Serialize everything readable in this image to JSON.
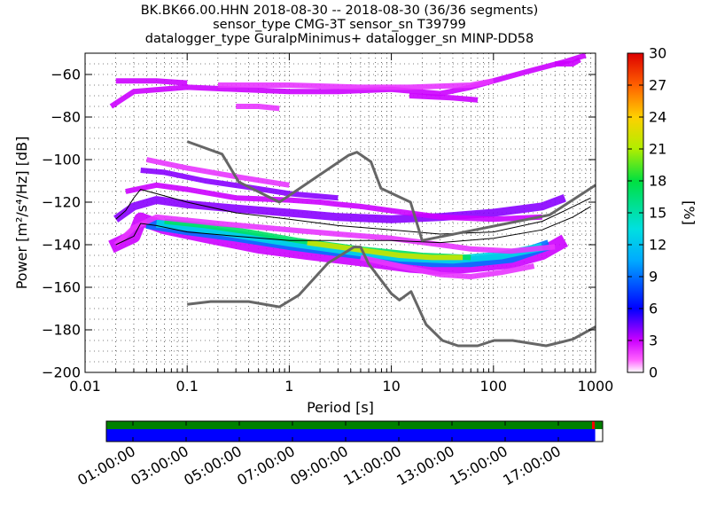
{
  "title_lines": [
    "BK.BK66.00.HHN   2018-08-30 -- 2018-08-30  (36/36 segments)",
    "sensor_type CMG-3T sensor_sn T39799",
    "datalogger_type GuralpMinimus+ datalogger_sn MINP-DD58"
  ],
  "chart_data": {
    "type": "heatmap",
    "xlabel": "Period [s]",
    "ylabel": "Power [m²/s⁴/Hz] [dB]",
    "xscale": "log",
    "xlim": [
      0.01,
      1000
    ],
    "ylim": [
      -200,
      -50
    ],
    "x_ticks": [
      {
        "value": 0.01,
        "label": "0.01"
      },
      {
        "value": 0.1,
        "label": "0.1"
      },
      {
        "value": 1,
        "label": "1"
      },
      {
        "value": 10,
        "label": "10"
      },
      {
        "value": 100,
        "label": "100"
      },
      {
        "value": 1000,
        "label": "1000"
      }
    ],
    "y_ticks": [
      -60,
      -80,
      -100,
      -120,
      -140,
      -160,
      -180,
      -200
    ],
    "colorbar": {
      "label": "[%]",
      "range": [
        0,
        30
      ],
      "ticks": [
        0,
        3,
        6,
        9,
        12,
        15,
        18,
        21,
        24,
        27,
        30
      ]
    },
    "noise_models": {
      "high": [
        [
          0.1,
          -91.5
        ],
        [
          0.22,
          -97.4
        ],
        [
          0.32,
          -110.5
        ],
        [
          0.8,
          -120
        ],
        [
          3.8,
          -98
        ],
        [
          4.6,
          -96.5
        ],
        [
          6.3,
          -101
        ],
        [
          7.9,
          -113.5
        ],
        [
          15.4,
          -120
        ],
        [
          20,
          -138
        ],
        [
          354.8,
          -126
        ],
        [
          1000,
          -112
        ]
      ],
      "low": [
        [
          0.1,
          -168
        ],
        [
          0.17,
          -166.7
        ],
        [
          0.4,
          -166.7
        ],
        [
          0.8,
          -169.2
        ],
        [
          1.24,
          -163.7
        ],
        [
          2.4,
          -148.6
        ],
        [
          4.3,
          -141.1
        ],
        [
          5.0,
          -141.1
        ],
        [
          6.0,
          -149
        ],
        [
          10,
          -163
        ],
        [
          12,
          -166
        ],
        [
          15.6,
          -162
        ],
        [
          21.9,
          -177.5
        ],
        [
          31.6,
          -185
        ],
        [
          45,
          -187.5
        ],
        [
          70,
          -187.5
        ],
        [
          101,
          -185
        ],
        [
          154,
          -185
        ],
        [
          328,
          -187.5
        ],
        [
          600,
          -184.4
        ],
        [
          1000,
          -178.6
        ]
      ]
    },
    "mean_curves": {
      "upper": [
        [
          0.02,
          -128
        ],
        [
          0.025,
          -124
        ],
        [
          0.03,
          -118
        ],
        [
          0.035,
          -114
        ],
        [
          0.05,
          -116
        ],
        [
          0.1,
          -120
        ],
        [
          0.3,
          -125
        ],
        [
          1,
          -128
        ],
        [
          3,
          -131
        ],
        [
          10,
          -133
        ],
        [
          30,
          -135
        ],
        [
          100,
          -134
        ],
        [
          300,
          -129
        ],
        [
          500,
          -124
        ],
        [
          900,
          -118
        ]
      ],
      "lower": [
        [
          0.02,
          -140
        ],
        [
          0.03,
          -136
        ],
        [
          0.035,
          -130
        ],
        [
          0.05,
          -131
        ],
        [
          0.1,
          -134
        ],
        [
          0.3,
          -136
        ],
        [
          1,
          -138
        ],
        [
          3,
          -138
        ],
        [
          10,
          -138
        ],
        [
          30,
          -139
        ],
        [
          100,
          -137
        ],
        [
          300,
          -133
        ],
        [
          600,
          -127
        ],
        [
          900,
          -122
        ]
      ]
    },
    "density_bands": [
      {
        "pts": [
          [
            0.018,
            -141
          ],
          [
            0.03,
            -136
          ],
          [
            0.035,
            -128
          ],
          [
            0.06,
            -132
          ],
          [
            0.15,
            -136
          ],
          [
            0.5,
            -141
          ],
          [
            1.5,
            -144
          ],
          [
            5,
            -147
          ],
          [
            15,
            -150
          ],
          [
            30,
            -151
          ],
          [
            60,
            -150
          ],
          [
            150,
            -148
          ],
          [
            300,
            -144
          ],
          [
            500,
            -138
          ]
        ],
        "w": 5,
        "v": 3
      },
      {
        "pts": [
          [
            0.04,
            -130
          ],
          [
            0.1,
            -133
          ],
          [
            0.3,
            -136
          ],
          [
            1,
            -140
          ],
          [
            3,
            -143
          ],
          [
            10,
            -146
          ],
          [
            25,
            -148
          ],
          [
            60,
            -148
          ],
          [
            150,
            -146
          ],
          [
            350,
            -140
          ]
        ],
        "w": 4,
        "v": 9
      },
      {
        "pts": [
          [
            0.05,
            -130
          ],
          [
            0.12,
            -132
          ],
          [
            0.3,
            -135
          ],
          [
            1,
            -139
          ],
          [
            4,
            -143
          ],
          [
            12,
            -146
          ],
          [
            40,
            -147
          ],
          [
            120,
            -145
          ],
          [
            300,
            -141
          ]
        ],
        "w": 3,
        "v": 13
      },
      {
        "pts": [
          [
            0.06,
            -129
          ],
          [
            0.15,
            -131
          ],
          [
            0.4,
            -134
          ],
          [
            1.2,
            -138
          ],
          [
            5,
            -142
          ],
          [
            20,
            -145
          ],
          [
            60,
            -146
          ]
        ],
        "w": 2,
        "v": 17
      },
      {
        "pts": [
          [
            1.5,
            -139
          ],
          [
            3,
            -141
          ],
          [
            6,
            -143
          ],
          [
            12,
            -145
          ],
          [
            25,
            -146
          ],
          [
            50,
            -146
          ]
        ],
        "w": 2,
        "v": 22
      },
      {
        "pts": [
          [
            0.02,
            -128
          ],
          [
            0.03,
            -122
          ],
          [
            0.05,
            -119
          ],
          [
            0.1,
            -121
          ],
          [
            0.3,
            -123
          ],
          [
            1,
            -125
          ],
          [
            3,
            -127
          ],
          [
            10,
            -128
          ],
          [
            30,
            -127
          ],
          [
            100,
            -125
          ],
          [
            300,
            -122
          ],
          [
            500,
            -118
          ]
        ],
        "w": 3,
        "v": 4
      },
      {
        "pts": [
          [
            0.025,
            -115
          ],
          [
            0.05,
            -112
          ],
          [
            0.1,
            -114
          ],
          [
            0.3,
            -118
          ],
          [
            1,
            -119
          ],
          [
            2,
            -120
          ],
          [
            3,
            -121
          ],
          [
            5,
            -122
          ],
          [
            10,
            -124
          ],
          [
            30,
            -127
          ],
          [
            100,
            -128
          ],
          [
            300,
            -127
          ]
        ],
        "w": 2,
        "v": 3
      },
      {
        "pts": [
          [
            0.035,
            -105
          ],
          [
            0.06,
            -106
          ],
          [
            0.15,
            -110
          ],
          [
            0.4,
            -113
          ],
          [
            1,
            -116
          ],
          [
            3,
            -118
          ]
        ],
        "w": 2,
        "v": 4
      },
      {
        "pts": [
          [
            0.04,
            -100
          ],
          [
            0.1,
            -104
          ],
          [
            0.3,
            -108
          ],
          [
            1,
            -112
          ]
        ],
        "w": 2,
        "v": 2
      },
      {
        "pts": [
          [
            0.02,
            -140
          ],
          [
            0.03,
            -132
          ],
          [
            0.05,
            -127
          ],
          [
            0.2,
            -130
          ],
          [
            1,
            -133
          ],
          [
            3,
            -135
          ],
          [
            10,
            -137
          ],
          [
            30,
            -140
          ],
          [
            60,
            -142
          ],
          [
            150,
            -143
          ],
          [
            400,
            -141
          ]
        ],
        "w": 2,
        "v": 2
      },
      {
        "pts": [
          [
            5,
            -146
          ],
          [
            15,
            -151
          ],
          [
            30,
            -154
          ],
          [
            60,
            -155
          ],
          [
            120,
            -153
          ],
          [
            250,
            -150
          ]
        ],
        "w": 2,
        "v": 2
      },
      {
        "pts": [
          [
            0.018,
            -75
          ],
          [
            0.03,
            -68
          ],
          [
            0.1,
            -66
          ],
          [
            0.3,
            -67
          ],
          [
            1,
            -68
          ],
          [
            3,
            -68
          ],
          [
            10,
            -67
          ],
          [
            30,
            -69
          ],
          [
            60,
            -66
          ],
          [
            100,
            -63
          ],
          [
            200,
            -59
          ],
          [
            500,
            -54
          ],
          [
            800,
            -51
          ]
        ],
        "w": 2,
        "v": 3
      },
      {
        "pts": [
          [
            0.02,
            -63
          ],
          [
            0.05,
            -63
          ],
          [
            0.1,
            -64
          ]
        ],
        "w": 2,
        "v": 3
      },
      {
        "pts": [
          [
            0.2,
            -65
          ],
          [
            1,
            -65
          ],
          [
            5,
            -66
          ],
          [
            15,
            -66
          ],
          [
            60,
            -65
          ],
          [
            100,
            -63
          ]
        ],
        "w": 2,
        "v": 2
      },
      {
        "pts": [
          [
            15,
            -70
          ],
          [
            40,
            -71
          ],
          [
            70,
            -72
          ]
        ],
        "w": 2,
        "v": 3
      },
      {
        "pts": [
          [
            400,
            -55
          ],
          [
            600,
            -55
          ],
          [
            700,
            -53
          ]
        ],
        "w": 2,
        "v": 3
      },
      {
        "pts": [
          [
            0.3,
            -75
          ],
          [
            0.5,
            -75
          ],
          [
            0.8,
            -76
          ]
        ],
        "w": 2,
        "v": 2
      }
    ],
    "timeline": {
      "labels": [
        "01:00:00",
        "03:00:00",
        "05:00:00",
        "07:00:00",
        "09:00:00",
        "11:00:00",
        "13:00:00",
        "15:00:00",
        "17:00:00"
      ],
      "data_fraction": 0.985,
      "colors": {
        "coverage": "#008000",
        "data": "#0000ff",
        "gap": "#ff0000"
      }
    }
  }
}
